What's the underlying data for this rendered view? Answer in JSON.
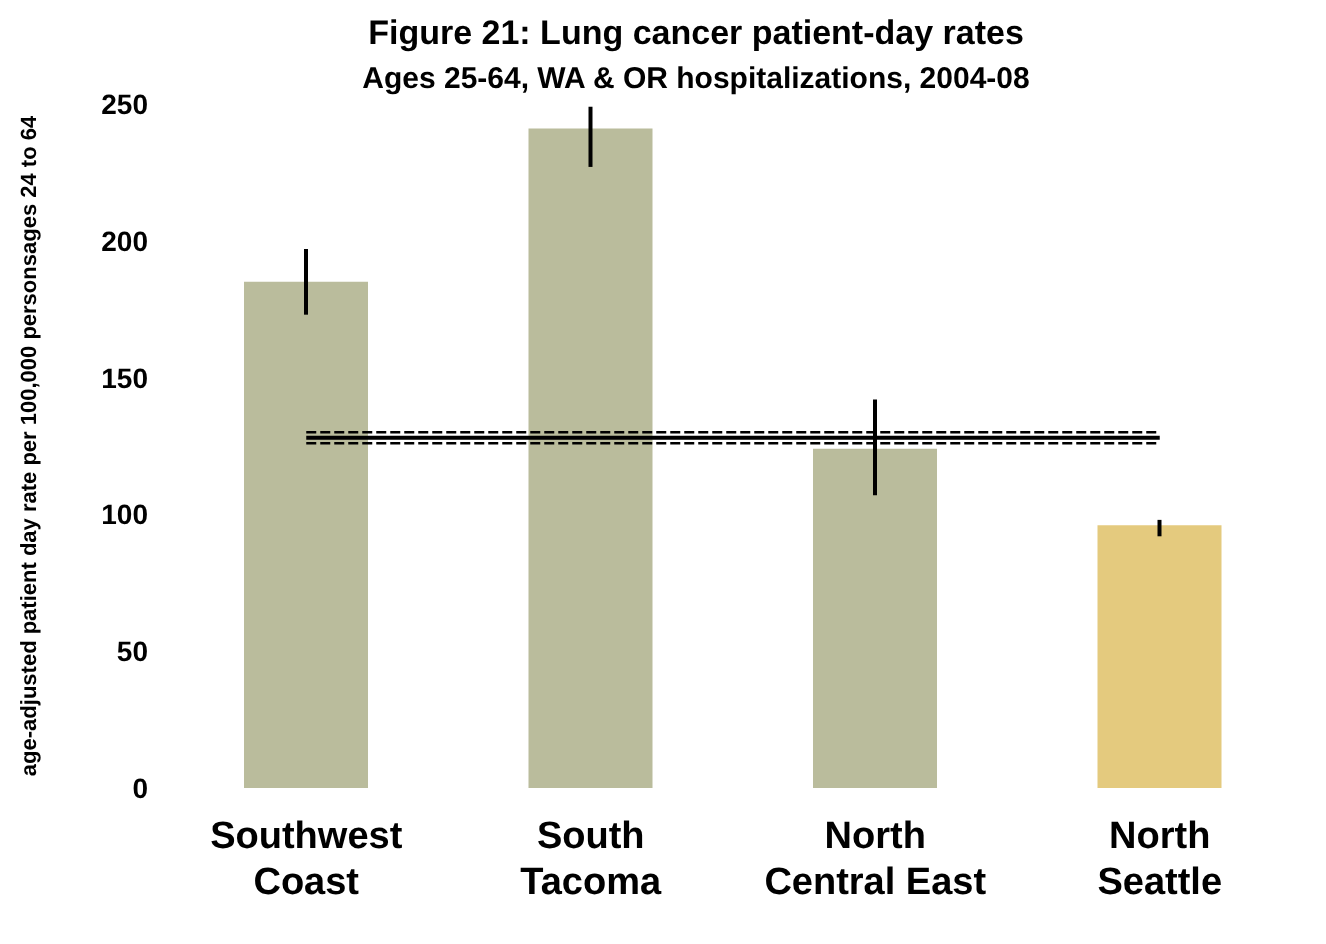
{
  "chart_data": {
    "type": "bar",
    "title": "Figure 21: Lung cancer patient-day rates",
    "subtitle": "Ages 25-64, WA & OR hospitalizations, 2004-08",
    "ylabel": "age-adjusted patient day rate per 100,000 personsages 24 to 64",
    "categories": [
      "Southwest Coast",
      "South Tacoma",
      "North Central East",
      "North Seattle"
    ],
    "values": [
      185,
      241,
      124,
      96
    ],
    "colors": [
      "#babc9c",
      "#babc9c",
      "#babc9c",
      "#e4ca7e"
    ],
    "errors": [
      [
        173,
        197
      ],
      [
        227,
        249
      ],
      [
        107,
        142
      ],
      [
        92,
        98
      ]
    ],
    "ylim": [
      0,
      250
    ],
    "yticks": [
      0,
      50,
      100,
      150,
      200,
      250
    ],
    "grid": false,
    "legend": false,
    "ref_lines": [
      {
        "axis": "y",
        "value": 128,
        "color": "#000000",
        "line_style": "solid"
      },
      {
        "axis": "y",
        "value": 126,
        "color": "#000000",
        "line_style": "dashed"
      },
      {
        "axis": "y",
        "value": 130,
        "color": "#000000",
        "line_style": "dashed"
      }
    ]
  }
}
